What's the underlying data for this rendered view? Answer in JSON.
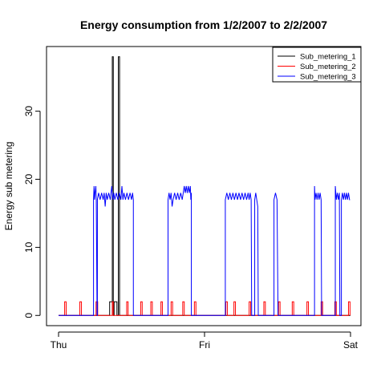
{
  "chart_data": {
    "type": "line",
    "title": "Energy consumption from 1/2/2007 to 2/2/2007",
    "xlabel": "",
    "ylabel": "Energy sub metering",
    "x_ticks": [
      "Thu",
      "Fri",
      "Sat"
    ],
    "x_tick_positions": [
      0,
      1440,
      2880
    ],
    "xlim": [
      0,
      2880
    ],
    "xlim_unit": "minutes since 1/2/2007 00:00",
    "ylim": [
      -1.5,
      39.5
    ],
    "y_ticks": [
      0,
      10,
      20,
      30
    ],
    "grid": false,
    "legend_position": "top-right",
    "series": [
      {
        "name": "Sub_metering_1",
        "color": "#000000",
        "points": [
          [
            0,
            0
          ],
          [
            504,
            0
          ],
          [
            504,
            2
          ],
          [
            530,
            2
          ],
          [
            530,
            38
          ],
          [
            540,
            38
          ],
          [
            540,
            0
          ],
          [
            548,
            0
          ],
          [
            548,
            2
          ],
          [
            576,
            2
          ],
          [
            576,
            0
          ],
          [
            590,
            0
          ],
          [
            590,
            38
          ],
          [
            602,
            38
          ],
          [
            602,
            0
          ],
          [
            2880,
            0
          ]
        ]
      },
      {
        "name": "Sub_metering_2",
        "color": "#ff0000",
        "points": [
          [
            0,
            0
          ],
          [
            60,
            0
          ],
          [
            60,
            2
          ],
          [
            75,
            2
          ],
          [
            75,
            0
          ],
          [
            210,
            0
          ],
          [
            210,
            2
          ],
          [
            226,
            2
          ],
          [
            226,
            0
          ],
          [
            370,
            0
          ],
          [
            370,
            2
          ],
          [
            386,
            2
          ],
          [
            386,
            0
          ],
          [
            530,
            0
          ],
          [
            530,
            2
          ],
          [
            540,
            2
          ],
          [
            540,
            0
          ],
          [
            672,
            0
          ],
          [
            672,
            2
          ],
          [
            686,
            2
          ],
          [
            686,
            0
          ],
          [
            810,
            0
          ],
          [
            810,
            2
          ],
          [
            825,
            2
          ],
          [
            825,
            0
          ],
          [
            910,
            0
          ],
          [
            910,
            2
          ],
          [
            925,
            2
          ],
          [
            925,
            0
          ],
          [
            1010,
            0
          ],
          [
            1010,
            2
          ],
          [
            1024,
            2
          ],
          [
            1024,
            0
          ],
          [
            1110,
            0
          ],
          [
            1110,
            2
          ],
          [
            1125,
            2
          ],
          [
            1125,
            0
          ],
          [
            1225,
            0
          ],
          [
            1225,
            2
          ],
          [
            1240,
            2
          ],
          [
            1240,
            0
          ],
          [
            1340,
            0
          ],
          [
            1340,
            2
          ],
          [
            1355,
            2
          ],
          [
            1355,
            0
          ],
          [
            1650,
            0
          ],
          [
            1650,
            2
          ],
          [
            1665,
            2
          ],
          [
            1665,
            0
          ],
          [
            1730,
            0
          ],
          [
            1730,
            2
          ],
          [
            1745,
            2
          ],
          [
            1745,
            0
          ],
          [
            1880,
            0
          ],
          [
            1880,
            2
          ],
          [
            1895,
            2
          ],
          [
            1895,
            0
          ],
          [
            2025,
            0
          ],
          [
            2025,
            2
          ],
          [
            2040,
            2
          ],
          [
            2040,
            0
          ],
          [
            2170,
            0
          ],
          [
            2170,
            2
          ],
          [
            2185,
            2
          ],
          [
            2185,
            0
          ],
          [
            2305,
            0
          ],
          [
            2305,
            2
          ],
          [
            2320,
            2
          ],
          [
            2320,
            0
          ],
          [
            2450,
            0
          ],
          [
            2450,
            2
          ],
          [
            2465,
            2
          ],
          [
            2465,
            0
          ],
          [
            2590,
            0
          ],
          [
            2590,
            2
          ],
          [
            2605,
            2
          ],
          [
            2605,
            0
          ],
          [
            2725,
            0
          ],
          [
            2725,
            2
          ],
          [
            2740,
            2
          ],
          [
            2740,
            0
          ],
          [
            2860,
            0
          ],
          [
            2860,
            2
          ],
          [
            2875,
            2
          ],
          [
            2875,
            0
          ]
        ]
      },
      {
        "name": "Sub_metering_3",
        "color": "#0000ff",
        "points": [
          [
            0,
            0
          ],
          [
            345,
            0
          ],
          [
            345,
            17
          ],
          [
            350,
            19
          ],
          [
            355,
            17
          ],
          [
            360,
            18
          ],
          [
            368,
            19
          ],
          [
            372,
            17
          ],
          [
            380,
            0
          ],
          [
            383,
            0
          ],
          [
            383,
            17
          ],
          [
            395,
            18
          ],
          [
            410,
            17
          ],
          [
            425,
            18
          ],
          [
            440,
            17
          ],
          [
            450,
            18
          ],
          [
            460,
            16
          ],
          [
            470,
            18
          ],
          [
            480,
            17
          ],
          [
            495,
            18
          ],
          [
            510,
            17
          ],
          [
            525,
            19
          ],
          [
            535,
            17
          ],
          [
            545,
            18
          ],
          [
            555,
            17
          ],
          [
            570,
            18
          ],
          [
            585,
            17
          ],
          [
            600,
            18
          ],
          [
            615,
            17
          ],
          [
            625,
            19
          ],
          [
            635,
            17
          ],
          [
            645,
            18
          ],
          [
            660,
            17
          ],
          [
            675,
            18
          ],
          [
            690,
            17
          ],
          [
            705,
            18
          ],
          [
            720,
            17
          ],
          [
            730,
            18
          ],
          [
            738,
            17
          ],
          [
            738,
            0
          ],
          [
            1080,
            0
          ],
          [
            1080,
            17
          ],
          [
            1090,
            18
          ],
          [
            1100,
            17
          ],
          [
            1110,
            18
          ],
          [
            1120,
            16
          ],
          [
            1130,
            17
          ],
          [
            1145,
            18
          ],
          [
            1160,
            17
          ],
          [
            1175,
            18
          ],
          [
            1190,
            17
          ],
          [
            1205,
            18
          ],
          [
            1220,
            17
          ],
          [
            1230,
            18
          ],
          [
            1240,
            19
          ],
          [
            1250,
            18
          ],
          [
            1260,
            19
          ],
          [
            1270,
            18
          ],
          [
            1280,
            19
          ],
          [
            1290,
            18
          ],
          [
            1300,
            19
          ],
          [
            1305,
            17
          ],
          [
            1310,
            18
          ],
          [
            1310,
            0
          ],
          [
            1645,
            0
          ],
          [
            1645,
            17
          ],
          [
            1660,
            18
          ],
          [
            1675,
            17
          ],
          [
            1690,
            18
          ],
          [
            1705,
            17
          ],
          [
            1720,
            18
          ],
          [
            1735,
            17
          ],
          [
            1750,
            18
          ],
          [
            1765,
            17
          ],
          [
            1780,
            18
          ],
          [
            1795,
            17
          ],
          [
            1810,
            18
          ],
          [
            1825,
            17
          ],
          [
            1840,
            18
          ],
          [
            1855,
            17
          ],
          [
            1870,
            18
          ],
          [
            1880,
            17
          ],
          [
            1890,
            18
          ],
          [
            1900,
            17
          ],
          [
            1905,
            0
          ],
          [
            1935,
            0
          ],
          [
            1935,
            17
          ],
          [
            1945,
            18
          ],
          [
            1955,
            17
          ],
          [
            1965,
            16
          ],
          [
            1970,
            0
          ],
          [
            2125,
            0
          ],
          [
            2125,
            17
          ],
          [
            2140,
            18
          ],
          [
            2155,
            17
          ],
          [
            2165,
            0
          ],
          [
            2525,
            0
          ],
          [
            2525,
            19
          ],
          [
            2530,
            17
          ],
          [
            2540,
            18
          ],
          [
            2550,
            17
          ],
          [
            2560,
            18
          ],
          [
            2570,
            17
          ],
          [
            2580,
            18
          ],
          [
            2590,
            17
          ],
          [
            2595,
            0
          ],
          [
            2730,
            0
          ],
          [
            2730,
            19
          ],
          [
            2740,
            17
          ],
          [
            2750,
            18
          ],
          [
            2760,
            17
          ],
          [
            2770,
            18
          ],
          [
            2775,
            0
          ],
          [
            2790,
            0
          ],
          [
            2790,
            17
          ],
          [
            2800,
            18
          ],
          [
            2810,
            17
          ],
          [
            2820,
            18
          ],
          [
            2830,
            17
          ],
          [
            2840,
            18
          ],
          [
            2850,
            17
          ],
          [
            2860,
            18
          ],
          [
            2870,
            17
          ],
          [
            2875,
            17
          ]
        ]
      }
    ]
  }
}
